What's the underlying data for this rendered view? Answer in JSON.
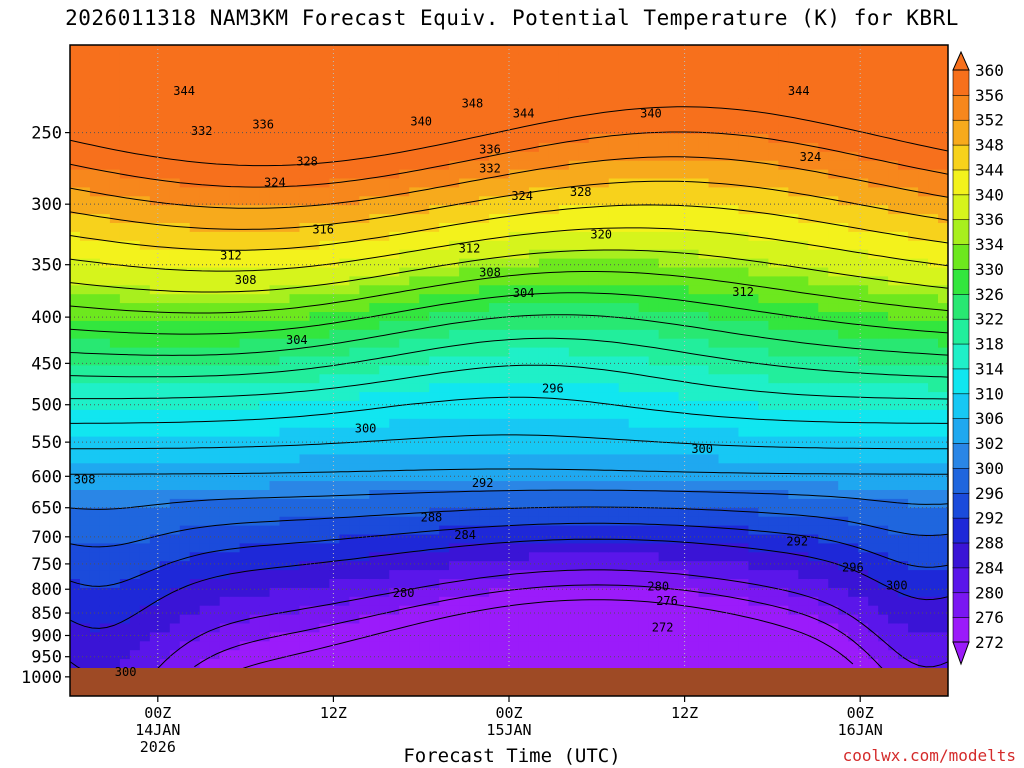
{
  "title": "2026011318 NAM3KM Forecast Equiv. Potential Temperature (K) for KBRL",
  "xlabel": "Forecast Time (UTC)",
  "credit": "coolwx.com/modelts",
  "colors": {
    "ground": "#9e4a25",
    "credit": "#d42b2b",
    "scale": [
      "#9b1bfa",
      "#7a17f2",
      "#5a16ea",
      "#3a14d6",
      "#1e28d8",
      "#1b4bdb",
      "#1f66de",
      "#2a86e6",
      "#1fa8f0",
      "#17c8f4",
      "#11e6f0",
      "#1ff0c8",
      "#22ee9c",
      "#28e872",
      "#33e63e",
      "#6de81e",
      "#a8ef1e",
      "#d6f41c",
      "#f3f21c",
      "#f7d21c",
      "#f7aa1c",
      "#f7871c",
      "#f7701c"
    ]
  },
  "chart_data": {
    "type": "heatmap",
    "title": "2026011318 NAM3KM Forecast Equiv. Potential Temperature (K) for KBRL",
    "xlabel": "Forecast Time (UTC)",
    "ylabel": "",
    "y_axis": {
      "type": "log-pressure",
      "ticks": [
        250,
        300,
        350,
        400,
        450,
        500,
        550,
        600,
        650,
        700,
        750,
        800,
        850,
        900,
        950,
        1000
      ],
      "range_hPa": [
        1050,
        200
      ],
      "inverted": true
    },
    "x_axis": {
      "range_hours": [
        0,
        60
      ],
      "ticks": [
        {
          "hour": 6,
          "lines": [
            "00Z",
            "14JAN",
            "2026"
          ]
        },
        {
          "hour": 18,
          "lines": [
            "12Z"
          ]
        },
        {
          "hour": 30,
          "lines": [
            "00Z",
            "15JAN"
          ]
        },
        {
          "hour": 42,
          "lines": [
            "12Z"
          ]
        },
        {
          "hour": 54,
          "lines": [
            "00Z",
            "16JAN"
          ]
        }
      ]
    },
    "colorbar": {
      "units": "K",
      "levels": [
        272,
        276,
        280,
        284,
        288,
        292,
        296,
        300,
        302,
        306,
        310,
        314,
        318,
        322,
        326,
        330,
        334,
        336,
        340,
        344,
        348,
        352,
        356,
        360
      ],
      "labels": [
        "272",
        "276",
        "280",
        "284",
        "288",
        "292",
        "296",
        "300",
        "302",
        "306",
        "310",
        "314",
        "318",
        "322",
        "326",
        "330",
        "334",
        "336",
        "340",
        "344",
        "348",
        "352",
        "356",
        "360"
      ]
    },
    "contour_labels": [
      {
        "text": "344",
        "hour": 7.8,
        "p": 225
      },
      {
        "text": "348",
        "hour": 27.5,
        "p": 232
      },
      {
        "text": "344",
        "hour": 31.0,
        "p": 238
      },
      {
        "text": "340",
        "hour": 39.7,
        "p": 238
      },
      {
        "text": "344",
        "hour": 49.8,
        "p": 225
      },
      {
        "text": "332",
        "hour": 9.0,
        "p": 249
      },
      {
        "text": "336",
        "hour": 13.2,
        "p": 245
      },
      {
        "text": "340",
        "hour": 24.0,
        "p": 243
      },
      {
        "text": "336",
        "hour": 28.7,
        "p": 261
      },
      {
        "text": "332",
        "hour": 28.7,
        "p": 274
      },
      {
        "text": "328",
        "hour": 16.2,
        "p": 269
      },
      {
        "text": "324",
        "hour": 14.0,
        "p": 284
      },
      {
        "text": "324",
        "hour": 30.9,
        "p": 294
      },
      {
        "text": "328",
        "hour": 34.9,
        "p": 291
      },
      {
        "text": "324",
        "hour": 50.6,
        "p": 266
      },
      {
        "text": "316",
        "hour": 17.3,
        "p": 320
      },
      {
        "text": "312",
        "hour": 11.0,
        "p": 342
      },
      {
        "text": "312",
        "hour": 27.3,
        "p": 336
      },
      {
        "text": "320",
        "hour": 36.3,
        "p": 324
      },
      {
        "text": "308",
        "hour": 28.7,
        "p": 357
      },
      {
        "text": "308",
        "hour": 12.0,
        "p": 364
      },
      {
        "text": "304",
        "hour": 31.0,
        "p": 376
      },
      {
        "text": "312",
        "hour": 46.0,
        "p": 375
      },
      {
        "text": "304",
        "hour": 15.5,
        "p": 424
      },
      {
        "text": "296",
        "hour": 33.0,
        "p": 480
      },
      {
        "text": "300",
        "hour": 20.2,
        "p": 531
      },
      {
        "text": "300",
        "hour": 43.2,
        "p": 560
      },
      {
        "text": "308",
        "hour": 1.0,
        "p": 605
      },
      {
        "text": "292",
        "hour": 28.2,
        "p": 610
      },
      {
        "text": "288",
        "hour": 24.7,
        "p": 666
      },
      {
        "text": "284",
        "hour": 27.0,
        "p": 697
      },
      {
        "text": "292",
        "hour": 49.7,
        "p": 708
      },
      {
        "text": "296",
        "hour": 53.5,
        "p": 757
      },
      {
        "text": "280",
        "hour": 40.2,
        "p": 794
      },
      {
        "text": "300",
        "hour": 56.5,
        "p": 792
      },
      {
        "text": "280",
        "hour": 22.8,
        "p": 808
      },
      {
        "text": "276",
        "hour": 40.8,
        "p": 824
      },
      {
        "text": "272",
        "hour": 40.5,
        "p": 882
      },
      {
        "text": "300",
        "hour": 3.8,
        "p": 988
      }
    ]
  }
}
